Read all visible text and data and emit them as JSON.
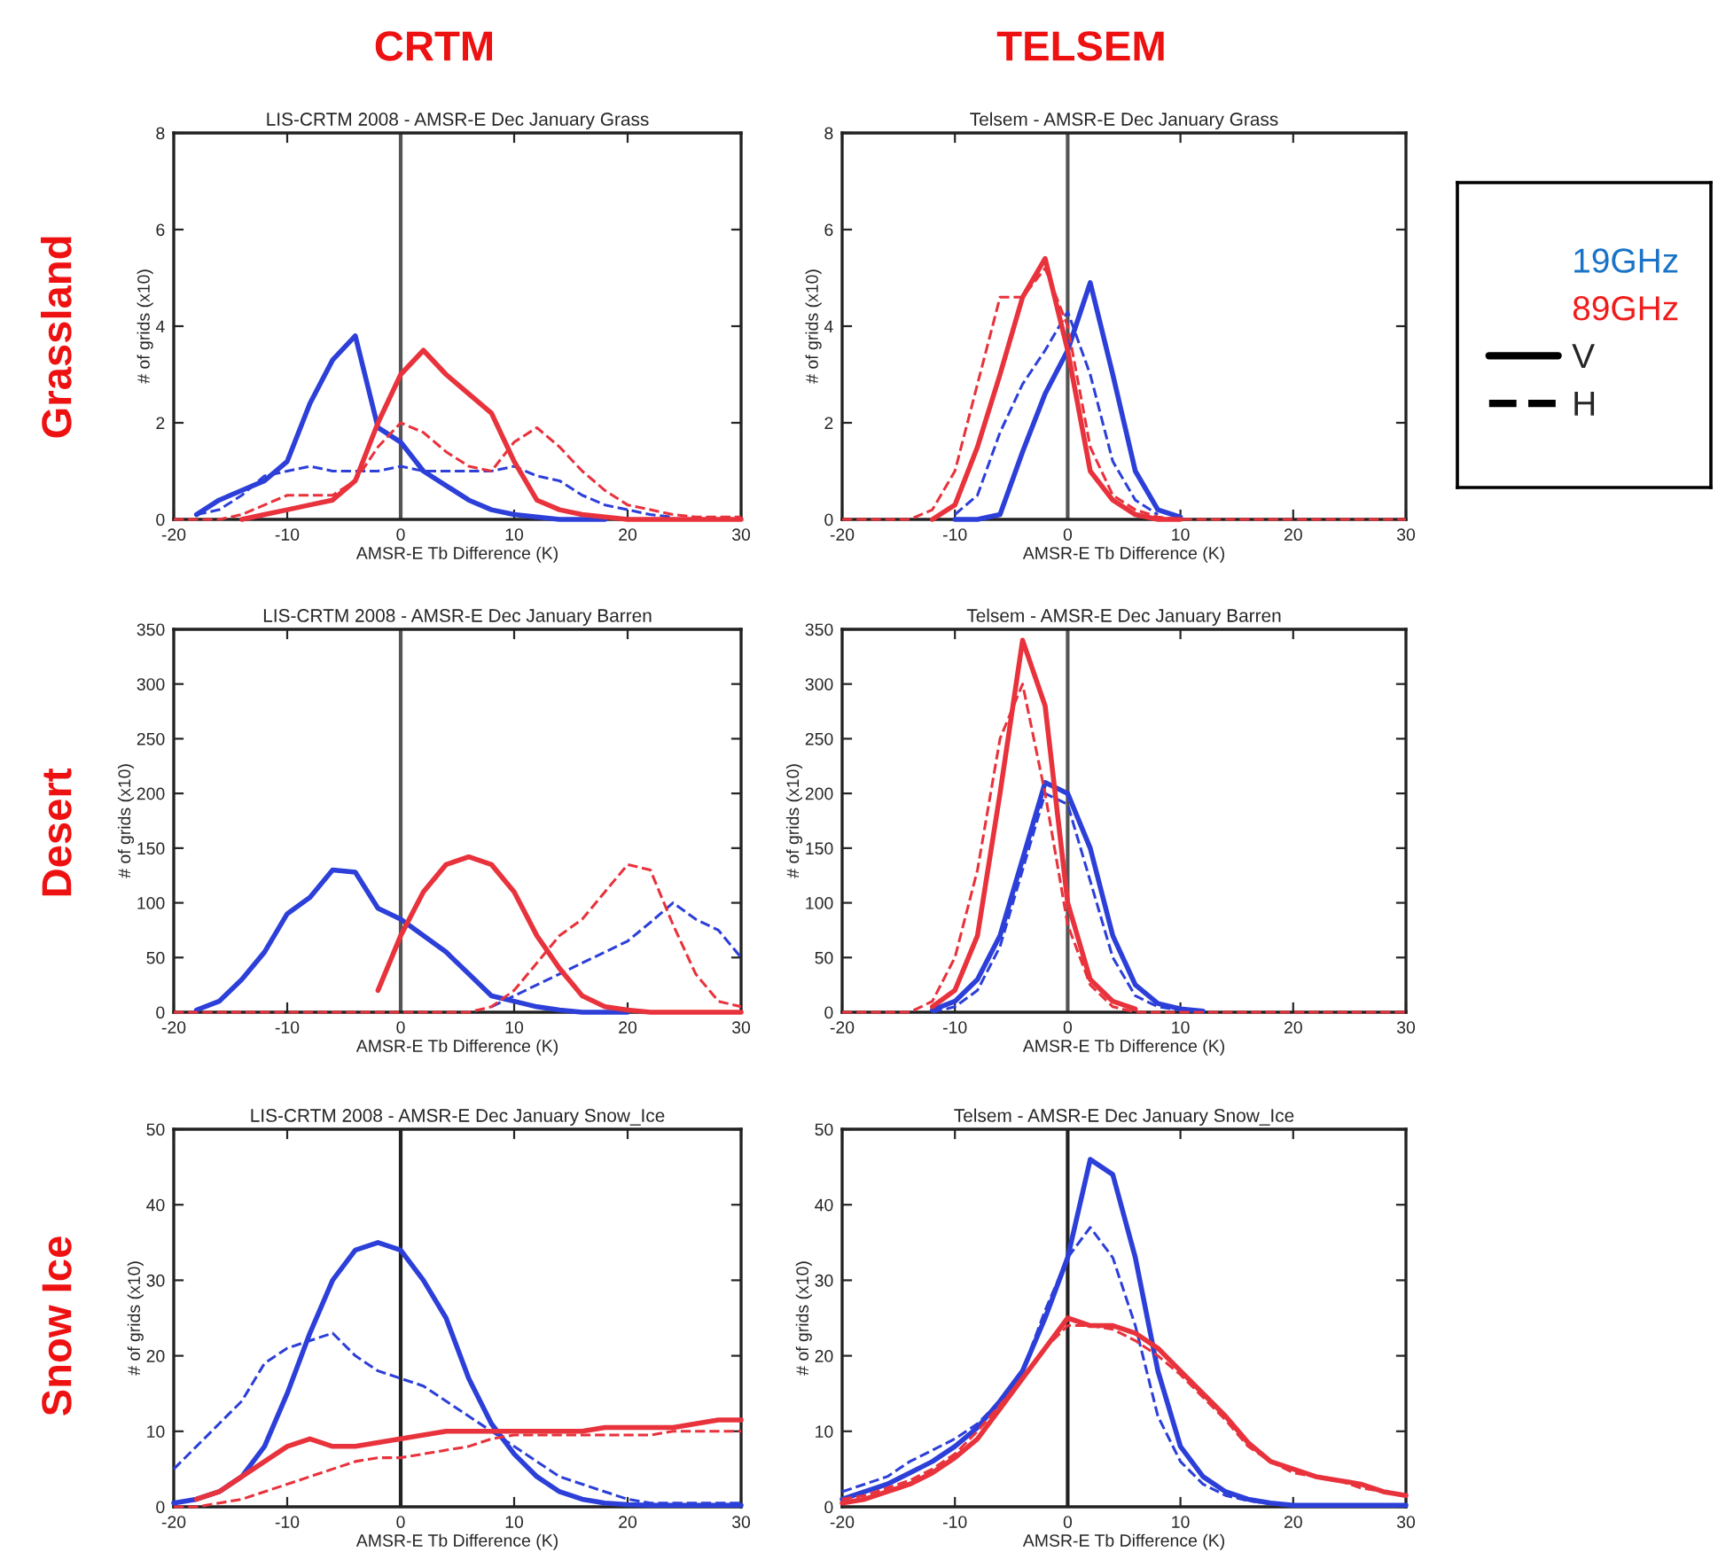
{
  "chart_data": [
    {
      "type": "line",
      "title": "LIS-CRTM 2008 - AMSR-E Dec January Grass",
      "xlabel": "AMSR-E Tb Difference (K)",
      "ylabel": "# of grids (x10)",
      "x": [
        -20,
        -18,
        -16,
        -14,
        -12,
        -10,
        -8,
        -6,
        -4,
        -2,
        0,
        2,
        4,
        6,
        8,
        10,
        12,
        14,
        16,
        18,
        20,
        22,
        24,
        26,
        28,
        30
      ],
      "xlim": [
        -20,
        30
      ],
      "xticks": [
        -20,
        -10,
        0,
        10,
        20,
        30
      ],
      "ylim": [
        0,
        8
      ],
      "yticks": [
        0,
        2,
        4,
        6,
        8
      ],
      "ref_lines": [
        {
          "axis": "x",
          "value": 0,
          "color": "#555555"
        }
      ],
      "series": [
        {
          "color": "#2c3fd8",
          "line_style": "solid",
          "values": [
            null,
            0.1,
            0.4,
            0.6,
            0.8,
            1.2,
            2.4,
            3.3,
            3.8,
            1.9,
            1.6,
            1.0,
            0.7,
            0.4,
            0.2,
            0.1,
            0.05,
            0,
            0,
            0,
            null,
            null,
            null,
            null,
            null,
            null
          ]
        },
        {
          "color": "#2c3fd8",
          "line_style": "dashed",
          "values": [
            null,
            0.1,
            0.2,
            0.5,
            0.9,
            1.0,
            1.1,
            1.0,
            1.0,
            1.0,
            1.1,
            1.0,
            1.0,
            1.0,
            1.0,
            1.1,
            0.9,
            0.8,
            0.5,
            0.3,
            0.2,
            0.1,
            0.05,
            null,
            null,
            null
          ]
        },
        {
          "color": "#e8323c",
          "line_style": "solid",
          "values": [
            null,
            null,
            null,
            0,
            0.1,
            0.2,
            0.3,
            0.4,
            0.8,
            2.0,
            3.0,
            3.5,
            3.0,
            2.6,
            2.2,
            1.2,
            0.4,
            0.2,
            0.1,
            0.05,
            0,
            0,
            0,
            0,
            0,
            0
          ]
        },
        {
          "color": "#e8323c",
          "line_style": "dashed",
          "values": [
            0,
            0,
            0,
            0.1,
            0.3,
            0.5,
            0.5,
            0.5,
            0.8,
            1.5,
            2.0,
            1.8,
            1.4,
            1.1,
            1.0,
            1.6,
            1.9,
            1.5,
            1.0,
            0.6,
            0.3,
            0.2,
            0.1,
            0.05,
            0.05,
            0.05
          ]
        }
      ]
    },
    {
      "type": "line",
      "title": "Telsem - AMSR-E Dec January Grass",
      "xlabel": "AMSR-E Tb Difference (K)",
      "ylabel": "# of grids (x10)",
      "x": [
        -20,
        -18,
        -16,
        -14,
        -12,
        -10,
        -8,
        -6,
        -4,
        -2,
        0,
        2,
        4,
        6,
        8,
        10,
        12,
        14,
        16,
        18,
        20,
        22,
        24,
        26,
        28,
        30
      ],
      "xlim": [
        -20,
        30
      ],
      "xticks": [
        -20,
        -10,
        0,
        10,
        20,
        30
      ],
      "ylim": [
        0,
        8
      ],
      "yticks": [
        0,
        2,
        4,
        6,
        8
      ],
      "ref_lines": [
        {
          "axis": "x",
          "value": 0,
          "color": "#555555"
        }
      ],
      "series": [
        {
          "color": "#2c3fd8",
          "line_style": "solid",
          "values": [
            null,
            null,
            null,
            null,
            null,
            0,
            0,
            0.1,
            1.4,
            2.6,
            3.5,
            4.9,
            3.0,
            1.0,
            0.2,
            0.05,
            null,
            null,
            null,
            null,
            null,
            null,
            null,
            null,
            null,
            null
          ]
        },
        {
          "color": "#2c3fd8",
          "line_style": "dashed",
          "values": [
            null,
            null,
            null,
            null,
            null,
            0.1,
            0.5,
            1.8,
            2.8,
            3.5,
            4.3,
            3.0,
            1.2,
            0.4,
            0.1,
            null,
            null,
            null,
            null,
            null,
            null,
            null,
            null,
            null,
            null,
            null
          ]
        },
        {
          "color": "#e8323c",
          "line_style": "solid",
          "values": [
            null,
            null,
            null,
            null,
            0,
            0.3,
            1.5,
            3.0,
            4.6,
            5.4,
            3.5,
            1.0,
            0.4,
            0.1,
            0,
            0,
            null,
            null,
            null,
            null,
            null,
            null,
            null,
            null,
            null,
            null
          ]
        },
        {
          "color": "#e8323c",
          "line_style": "dashed",
          "values": [
            0,
            0,
            0,
            0,
            0.2,
            1.0,
            2.8,
            4.6,
            4.6,
            5.2,
            4.0,
            1.5,
            0.5,
            0.2,
            0.05,
            0,
            0,
            0,
            0,
            0,
            0,
            0,
            0,
            0,
            0,
            0
          ]
        }
      ]
    },
    {
      "type": "line",
      "title": "LIS-CRTM 2008 - AMSR-E Dec January Barren",
      "xlabel": "AMSR-E Tb Difference (K)",
      "ylabel": "# of grids (x10)",
      "x": [
        -20,
        -18,
        -16,
        -14,
        -12,
        -10,
        -8,
        -6,
        -4,
        -2,
        0,
        2,
        4,
        6,
        8,
        10,
        12,
        14,
        16,
        18,
        20,
        22,
        24,
        26,
        28,
        30
      ],
      "xlim": [
        -20,
        30
      ],
      "xticks": [
        -20,
        -10,
        0,
        10,
        20,
        30
      ],
      "ylim": [
        0,
        350
      ],
      "yticks": [
        0,
        50,
        100,
        150,
        200,
        250,
        300,
        350
      ],
      "ref_lines": [
        {
          "axis": "x",
          "value": 0,
          "color": "#555555"
        }
      ],
      "series": [
        {
          "color": "#2c3fd8",
          "line_style": "solid",
          "values": [
            null,
            2,
            10,
            30,
            55,
            90,
            105,
            130,
            128,
            95,
            85,
            70,
            55,
            35,
            15,
            10,
            5,
            2,
            0,
            0,
            0,
            null,
            null,
            null,
            null,
            null
          ]
        },
        {
          "color": "#2c3fd8",
          "line_style": "dashed",
          "values": [
            null,
            null,
            null,
            null,
            null,
            null,
            null,
            null,
            null,
            null,
            null,
            null,
            null,
            null,
            5,
            15,
            25,
            35,
            45,
            55,
            65,
            82,
            100,
            85,
            75,
            50
          ]
        },
        {
          "color": "#e8323c",
          "line_style": "solid",
          "values": [
            null,
            null,
            null,
            null,
            null,
            null,
            null,
            null,
            null,
            20,
            70,
            110,
            135,
            142,
            135,
            110,
            70,
            40,
            15,
            5,
            2,
            0,
            0,
            0,
            0,
            0
          ]
        },
        {
          "color": "#e8323c",
          "line_style": "dashed",
          "values": [
            0,
            0,
            0,
            0,
            0,
            0,
            0,
            0,
            0,
            0,
            0,
            0,
            0,
            0,
            5,
            20,
            45,
            70,
            85,
            110,
            135,
            130,
            80,
            35,
            10,
            5
          ]
        }
      ]
    },
    {
      "type": "line",
      "title": "Telsem - AMSR-E Dec January Barren",
      "xlabel": "AMSR-E Tb Difference (K)",
      "ylabel": "# of grids (x10)",
      "x": [
        -20,
        -18,
        -16,
        -14,
        -12,
        -10,
        -8,
        -6,
        -4,
        -2,
        0,
        2,
        4,
        6,
        8,
        10,
        12,
        14,
        16,
        18,
        20,
        22,
        24,
        26,
        28,
        30
      ],
      "xlim": [
        -20,
        30
      ],
      "xticks": [
        -20,
        -10,
        0,
        10,
        20,
        30
      ],
      "ylim": [
        0,
        350
      ],
      "yticks": [
        0,
        50,
        100,
        150,
        200,
        250,
        300,
        350
      ],
      "ref_lines": [
        {
          "axis": "x",
          "value": 0,
          "color": "#555555"
        }
      ],
      "series": [
        {
          "color": "#2c3fd8",
          "line_style": "solid",
          "values": [
            null,
            null,
            null,
            null,
            2,
            10,
            30,
            70,
            140,
            210,
            200,
            150,
            70,
            25,
            8,
            3,
            1,
            null,
            null,
            null,
            null,
            null,
            null,
            null,
            null,
            null
          ]
        },
        {
          "color": "#2c3fd8",
          "line_style": "dashed",
          "values": [
            null,
            null,
            null,
            null,
            0,
            5,
            20,
            60,
            130,
            200,
            190,
            120,
            50,
            15,
            5,
            2,
            null,
            null,
            null,
            null,
            null,
            null,
            null,
            null,
            null,
            null
          ]
        },
        {
          "color": "#e8323c",
          "line_style": "solid",
          "values": [
            null,
            null,
            null,
            null,
            5,
            20,
            70,
            200,
            340,
            280,
            100,
            30,
            10,
            3,
            null,
            null,
            null,
            null,
            null,
            null,
            null,
            null,
            null,
            null,
            null,
            null
          ]
        },
        {
          "color": "#e8323c",
          "line_style": "dashed",
          "values": [
            0,
            0,
            0,
            0,
            10,
            50,
            130,
            250,
            300,
            200,
            80,
            25,
            5,
            0,
            0,
            0,
            0,
            0,
            0,
            0,
            0,
            0,
            0,
            0,
            0,
            0
          ]
        }
      ]
    },
    {
      "type": "line",
      "title": "LIS-CRTM 2008 - AMSR-E Dec January Snow_Ice",
      "xlabel": "AMSR-E Tb Difference (K)",
      "ylabel": "# of grids (x10)",
      "x": [
        -20,
        -18,
        -16,
        -14,
        -12,
        -10,
        -8,
        -6,
        -4,
        -2,
        0,
        2,
        4,
        6,
        8,
        10,
        12,
        14,
        16,
        18,
        20,
        22,
        24,
        26,
        28,
        30
      ],
      "xlim": [
        -20,
        30
      ],
      "xticks": [
        -20,
        -10,
        0,
        10,
        20,
        30
      ],
      "ylim": [
        0,
        50
      ],
      "yticks": [
        0,
        10,
        20,
        30,
        40,
        50
      ],
      "ref_lines": [
        {
          "axis": "x",
          "value": 0,
          "color": "#222222"
        }
      ],
      "series": [
        {
          "color": "#2c3fd8",
          "line_style": "solid",
          "values": [
            0.5,
            1,
            2,
            4,
            8,
            15,
            23,
            30,
            34,
            35,
            34,
            30,
            25,
            17,
            11,
            7,
            4,
            2,
            1,
            0.5,
            0.3,
            0.2,
            0.2,
            0.2,
            0.2,
            0.2
          ]
        },
        {
          "color": "#2c3fd8",
          "line_style": "dashed",
          "values": [
            5,
            8,
            11,
            14,
            19,
            21,
            22,
            23,
            20,
            18,
            17,
            16,
            14,
            12,
            10,
            8,
            6,
            4,
            3,
            2,
            1,
            0.5,
            0.5,
            0.5,
            0.5,
            0.5
          ]
        },
        {
          "color": "#e8323c",
          "line_style": "solid",
          "values": [
            null,
            1,
            2,
            4,
            6,
            8,
            9,
            8,
            8,
            8.5,
            9,
            9.5,
            10,
            10,
            10,
            10,
            10,
            10,
            10,
            10.5,
            10.5,
            10.5,
            10.5,
            11,
            11.5,
            11.5
          ]
        },
        {
          "color": "#e8323c",
          "line_style": "dashed",
          "values": [
            0,
            0,
            0.5,
            1,
            2,
            3,
            4,
            5,
            6,
            6.5,
            6.5,
            7,
            7.5,
            8,
            9,
            9.5,
            9.5,
            9.5,
            9.5,
            9.5,
            9.5,
            9.5,
            10,
            10,
            10,
            10
          ]
        }
      ]
    },
    {
      "type": "line",
      "title": "Telsem - AMSR-E Dec January Snow_Ice",
      "xlabel": "AMSR-E Tb Difference (K)",
      "ylabel": "# of grids (x10)",
      "x": [
        -20,
        -18,
        -16,
        -14,
        -12,
        -10,
        -8,
        -6,
        -4,
        -2,
        0,
        2,
        4,
        6,
        8,
        10,
        12,
        14,
        16,
        18,
        20,
        22,
        24,
        26,
        28,
        30
      ],
      "xlim": [
        -20,
        30
      ],
      "xticks": [
        -20,
        -10,
        0,
        10,
        20,
        30
      ],
      "ylim": [
        0,
        50
      ],
      "yticks": [
        0,
        10,
        20,
        30,
        40,
        50
      ],
      "ref_lines": [
        {
          "axis": "x",
          "value": 0,
          "color": "#222222"
        }
      ],
      "series": [
        {
          "color": "#2c3fd8",
          "line_style": "solid",
          "values": [
            1,
            2,
            3,
            4.5,
            6,
            8,
            10.5,
            14,
            18,
            25,
            33,
            46,
            44,
            33,
            18,
            8,
            4,
            2,
            1,
            0.5,
            0.2,
            0.2,
            0.2,
            0.2,
            0.2,
            0.2
          ]
        },
        {
          "color": "#2c3fd8",
          "line_style": "dashed",
          "values": [
            2,
            3,
            4,
            6,
            7.5,
            9,
            11,
            14,
            18,
            26,
            33,
            37,
            33,
            24,
            12,
            6,
            3,
            1.5,
            0.8,
            0.4,
            0.2,
            0.2,
            0.2,
            0.2,
            0.2,
            0.2
          ]
        },
        {
          "color": "#e8323c",
          "line_style": "solid",
          "values": [
            0.5,
            1,
            2,
            3,
            4.5,
            6.5,
            9,
            13,
            17,
            21,
            25,
            24,
            24,
            23,
            21,
            18,
            15,
            12,
            8.5,
            6,
            5,
            4,
            3.5,
            3,
            2,
            1.5
          ]
        },
        {
          "color": "#e8323c",
          "line_style": "dashed",
          "values": [
            1,
            1.5,
            2.5,
            3.5,
            5,
            7,
            10,
            13.5,
            17,
            21,
            24,
            24,
            23.5,
            22,
            20,
            17.5,
            14.5,
            11.5,
            8,
            6,
            4.5,
            4,
            3.5,
            2.5,
            2,
            1.5
          ]
        }
      ]
    },
    {
      "type": "other",
      "legend": "right",
      "annotations": [
        "CRTM",
        "TELSEM",
        "Grassland",
        "Desert",
        "Snow Ice"
      ],
      "series": [
        {
          "name": "19GHz",
          "color": "#1a73c7"
        },
        {
          "name": "89GHz",
          "color": "#f01c1c"
        },
        {
          "name": "V",
          "line_style": "solid",
          "color": "#000000"
        },
        {
          "name": "H",
          "line_style": "dashed",
          "color": "#000000"
        }
      ]
    }
  ]
}
